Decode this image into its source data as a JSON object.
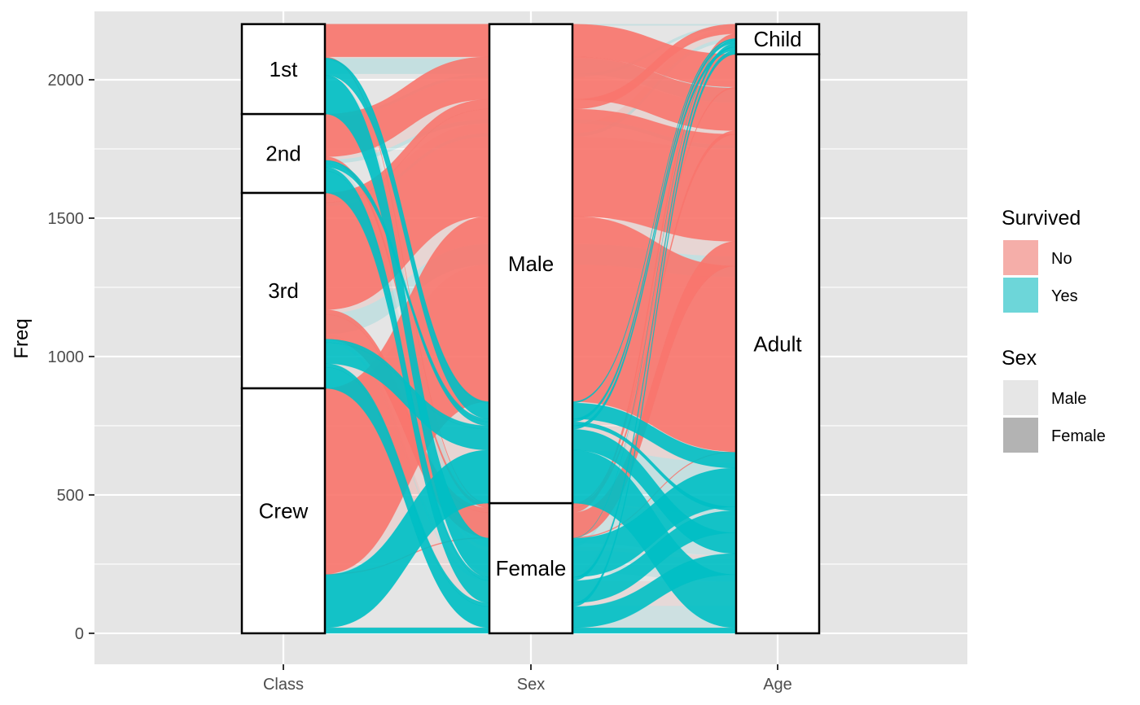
{
  "chart_data": {
    "type": "alluvial",
    "ylabel": "Freq",
    "xlabel": "",
    "ylim": [
      -112,
      2247
    ],
    "yticks": [
      0,
      500,
      1000,
      1500,
      2000
    ],
    "ytick_labels": [
      "0",
      "500",
      "1000",
      "1500",
      "2000"
    ],
    "axes": [
      "Class",
      "Sex",
      "Age"
    ],
    "strata": {
      "Class": [
        {
          "label": "1st",
          "count": 325
        },
        {
          "label": "2nd",
          "count": 285
        },
        {
          "label": "3rd",
          "count": 706
        },
        {
          "label": "Crew",
          "count": 885
        }
      ],
      "Sex": [
        {
          "label": "Male",
          "count": 1731
        },
        {
          "label": "Female",
          "count": 470
        }
      ],
      "Age": [
        {
          "label": "Child",
          "count": 109
        },
        {
          "label": "Adult",
          "count": 2092
        }
      ]
    },
    "flows": [
      {
        "Class": "1st",
        "Sex": "Male",
        "Age": "Child",
        "Survived": "No",
        "Freq": 0
      },
      {
        "Class": "2nd",
        "Sex": "Male",
        "Age": "Child",
        "Survived": "No",
        "Freq": 0
      },
      {
        "Class": "3rd",
        "Sex": "Male",
        "Age": "Child",
        "Survived": "No",
        "Freq": 35
      },
      {
        "Class": "Crew",
        "Sex": "Male",
        "Age": "Child",
        "Survived": "No",
        "Freq": 0
      },
      {
        "Class": "1st",
        "Sex": "Female",
        "Age": "Child",
        "Survived": "No",
        "Freq": 0
      },
      {
        "Class": "2nd",
        "Sex": "Female",
        "Age": "Child",
        "Survived": "No",
        "Freq": 0
      },
      {
        "Class": "3rd",
        "Sex": "Female",
        "Age": "Child",
        "Survived": "No",
        "Freq": 17
      },
      {
        "Class": "Crew",
        "Sex": "Female",
        "Age": "Child",
        "Survived": "No",
        "Freq": 0
      },
      {
        "Class": "1st",
        "Sex": "Male",
        "Age": "Adult",
        "Survived": "No",
        "Freq": 118
      },
      {
        "Class": "2nd",
        "Sex": "Male",
        "Age": "Adult",
        "Survived": "No",
        "Freq": 154
      },
      {
        "Class": "3rd",
        "Sex": "Male",
        "Age": "Adult",
        "Survived": "No",
        "Freq": 387
      },
      {
        "Class": "Crew",
        "Sex": "Male",
        "Age": "Adult",
        "Survived": "No",
        "Freq": 670
      },
      {
        "Class": "1st",
        "Sex": "Female",
        "Age": "Adult",
        "Survived": "No",
        "Freq": 4
      },
      {
        "Class": "2nd",
        "Sex": "Female",
        "Age": "Adult",
        "Survived": "No",
        "Freq": 13
      },
      {
        "Class": "3rd",
        "Sex": "Female",
        "Age": "Adult",
        "Survived": "No",
        "Freq": 89
      },
      {
        "Class": "Crew",
        "Sex": "Female",
        "Age": "Adult",
        "Survived": "No",
        "Freq": 3
      },
      {
        "Class": "1st",
        "Sex": "Male",
        "Age": "Child",
        "Survived": "Yes",
        "Freq": 5
      },
      {
        "Class": "2nd",
        "Sex": "Male",
        "Age": "Child",
        "Survived": "Yes",
        "Freq": 11
      },
      {
        "Class": "3rd",
        "Sex": "Male",
        "Age": "Child",
        "Survived": "Yes",
        "Freq": 13
      },
      {
        "Class": "Crew",
        "Sex": "Male",
        "Age": "Child",
        "Survived": "Yes",
        "Freq": 0
      },
      {
        "Class": "1st",
        "Sex": "Female",
        "Age": "Child",
        "Survived": "Yes",
        "Freq": 1
      },
      {
        "Class": "2nd",
        "Sex": "Female",
        "Age": "Child",
        "Survived": "Yes",
        "Freq": 13
      },
      {
        "Class": "3rd",
        "Sex": "Female",
        "Age": "Child",
        "Survived": "Yes",
        "Freq": 14
      },
      {
        "Class": "Crew",
        "Sex": "Female",
        "Age": "Child",
        "Survived": "Yes",
        "Freq": 0
      },
      {
        "Class": "1st",
        "Sex": "Male",
        "Age": "Adult",
        "Survived": "Yes",
        "Freq": 57
      },
      {
        "Class": "2nd",
        "Sex": "Male",
        "Age": "Adult",
        "Survived": "Yes",
        "Freq": 14
      },
      {
        "Class": "3rd",
        "Sex": "Male",
        "Age": "Adult",
        "Survived": "Yes",
        "Freq": 75
      },
      {
        "Class": "Crew",
        "Sex": "Male",
        "Age": "Adult",
        "Survived": "Yes",
        "Freq": 192
      },
      {
        "Class": "1st",
        "Sex": "Female",
        "Age": "Adult",
        "Survived": "Yes",
        "Freq": 140
      },
      {
        "Class": "2nd",
        "Sex": "Female",
        "Age": "Adult",
        "Survived": "Yes",
        "Freq": 80
      },
      {
        "Class": "3rd",
        "Sex": "Female",
        "Age": "Adult",
        "Survived": "Yes",
        "Freq": 76
      },
      {
        "Class": "Crew",
        "Sex": "Female",
        "Age": "Adult",
        "Survived": "Yes",
        "Freq": 20
      }
    ],
    "grid": true,
    "legend_position": "right",
    "legend": [
      {
        "title": "Survived",
        "items": [
          {
            "label": "No",
            "color": "#F8766D"
          },
          {
            "label": "Yes",
            "color": "#00BFC4"
          }
        ]
      },
      {
        "title": "Sex",
        "items": [
          {
            "label": "Male",
            "color": "#e6e6e6"
          },
          {
            "label": "Female",
            "color": "#b3b3b3"
          }
        ]
      }
    ],
    "colors": {
      "Survived_No": "#F8766D",
      "Survived_Yes": "#00BFC4",
      "panel_background": "#e5e5e5",
      "grid": "#ffffff"
    }
  }
}
